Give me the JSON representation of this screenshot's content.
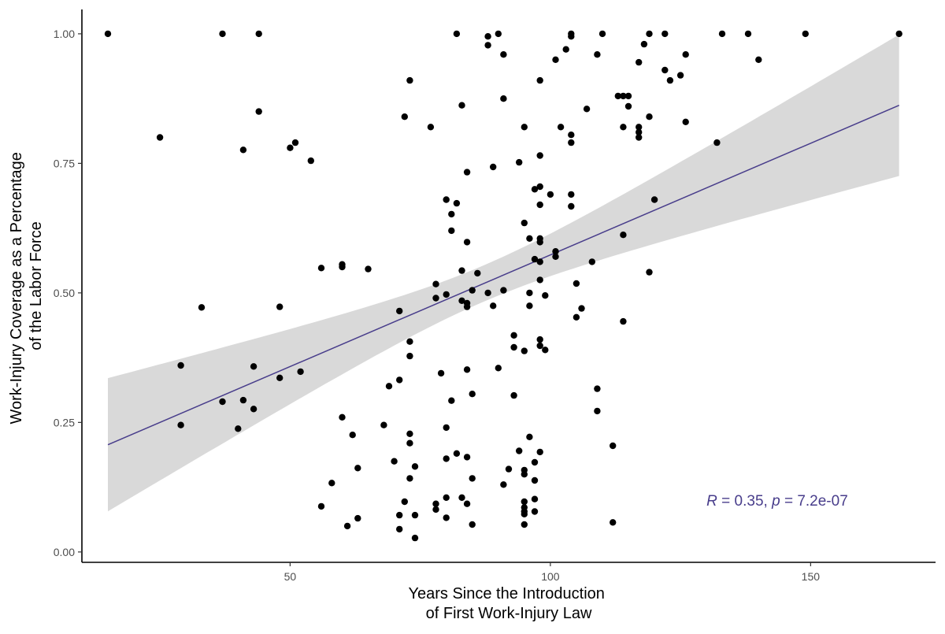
{
  "chart_data": {
    "type": "scatter",
    "title": "",
    "xlabel_lines": [
      "Years Since the Introduction",
      "of First Work-Injury Law"
    ],
    "ylabel_lines": [
      "Work-Injury Coverage as a Percentage",
      "of the Labor Force"
    ],
    "xlim": [
      10,
      174
    ],
    "ylim": [
      -0.02,
      1.047
    ],
    "x_ticks": [
      50,
      100,
      150
    ],
    "x_tick_labels": [
      "50",
      "100",
      "150"
    ],
    "y_ticks": [
      0,
      0.25,
      0.5,
      0.75,
      1
    ],
    "y_tick_labels": [
      "0.00",
      "0.25",
      "0.50",
      "0.75",
      "1.00"
    ],
    "grid": false,
    "point_color": "#000000",
    "fit_line_color": "#483d8b",
    "band_color": "#d9d9d9",
    "fit": {
      "x_range": [
        15,
        167
      ],
      "y_at_start": 0.207,
      "y_at_end": 0.862,
      "ci_at_start": [
        0.078,
        0.335
      ],
      "ci_at_end": [
        0.725,
        0.998
      ],
      "ci_narrowest_x": 87,
      "ci_narrowest_halfwidth": 0.035
    },
    "annotation": {
      "r_symbol": "R",
      "r_text": " = 0.35, ",
      "p_symbol": "p",
      "p_text": " = 7.2e-07",
      "color": "#483d8b",
      "x": 130,
      "y": 0.1
    },
    "points": [
      {
        "x": 15,
        "y": 1.0
      },
      {
        "x": 37,
        "y": 1.0
      },
      {
        "x": 44,
        "y": 1.0
      },
      {
        "x": 82,
        "y": 1.0
      },
      {
        "x": 88,
        "y": 0.995
      },
      {
        "x": 90,
        "y": 1.0
      },
      {
        "x": 104,
        "y": 1.0
      },
      {
        "x": 104,
        "y": 0.995
      },
      {
        "x": 110,
        "y": 1.0
      },
      {
        "x": 119,
        "y": 1.0
      },
      {
        "x": 122,
        "y": 1.0
      },
      {
        "x": 133,
        "y": 1.0
      },
      {
        "x": 138,
        "y": 1.0
      },
      {
        "x": 149,
        "y": 1.0
      },
      {
        "x": 167,
        "y": 1.0
      },
      {
        "x": 88,
        "y": 0.978
      },
      {
        "x": 91,
        "y": 0.96
      },
      {
        "x": 103,
        "y": 0.97
      },
      {
        "x": 101,
        "y": 0.95
      },
      {
        "x": 109,
        "y": 0.96
      },
      {
        "x": 118,
        "y": 0.98
      },
      {
        "x": 117,
        "y": 0.945
      },
      {
        "x": 126,
        "y": 0.96
      },
      {
        "x": 140,
        "y": 0.95
      },
      {
        "x": 122,
        "y": 0.93
      },
      {
        "x": 125,
        "y": 0.92
      },
      {
        "x": 123,
        "y": 0.91
      },
      {
        "x": 73,
        "y": 0.91
      },
      {
        "x": 98,
        "y": 0.91
      },
      {
        "x": 91,
        "y": 0.875
      },
      {
        "x": 83,
        "y": 0.862
      },
      {
        "x": 113,
        "y": 0.88
      },
      {
        "x": 114,
        "y": 0.88
      },
      {
        "x": 115,
        "y": 0.88
      },
      {
        "x": 115,
        "y": 0.86
      },
      {
        "x": 107,
        "y": 0.855
      },
      {
        "x": 44,
        "y": 0.85
      },
      {
        "x": 72,
        "y": 0.84
      },
      {
        "x": 119,
        "y": 0.84
      },
      {
        "x": 126,
        "y": 0.83
      },
      {
        "x": 77,
        "y": 0.82
      },
      {
        "x": 95,
        "y": 0.82
      },
      {
        "x": 102,
        "y": 0.82
      },
      {
        "x": 114,
        "y": 0.82
      },
      {
        "x": 117,
        "y": 0.82
      },
      {
        "x": 117,
        "y": 0.81
      },
      {
        "x": 104,
        "y": 0.805
      },
      {
        "x": 117,
        "y": 0.8
      },
      {
        "x": 25,
        "y": 0.8
      },
      {
        "x": 51,
        "y": 0.79
      },
      {
        "x": 104,
        "y": 0.79
      },
      {
        "x": 132,
        "y": 0.79
      },
      {
        "x": 50,
        "y": 0.78
      },
      {
        "x": 41,
        "y": 0.776
      },
      {
        "x": 98,
        "y": 0.765
      },
      {
        "x": 54,
        "y": 0.755
      },
      {
        "x": 94,
        "y": 0.752
      },
      {
        "x": 89,
        "y": 0.743
      },
      {
        "x": 84,
        "y": 0.733
      },
      {
        "x": 97,
        "y": 0.7
      },
      {
        "x": 98,
        "y": 0.705
      },
      {
        "x": 100,
        "y": 0.69
      },
      {
        "x": 104,
        "y": 0.69
      },
      {
        "x": 80,
        "y": 0.68
      },
      {
        "x": 82,
        "y": 0.673
      },
      {
        "x": 98,
        "y": 0.67
      },
      {
        "x": 104,
        "y": 0.667
      },
      {
        "x": 120,
        "y": 0.68
      },
      {
        "x": 81,
        "y": 0.652
      },
      {
        "x": 95,
        "y": 0.635
      },
      {
        "x": 81,
        "y": 0.62
      },
      {
        "x": 114,
        "y": 0.612
      },
      {
        "x": 96,
        "y": 0.605
      },
      {
        "x": 98,
        "y": 0.605
      },
      {
        "x": 84,
        "y": 0.598
      },
      {
        "x": 98,
        "y": 0.598
      },
      {
        "x": 101,
        "y": 0.58
      },
      {
        "x": 97,
        "y": 0.565
      },
      {
        "x": 98,
        "y": 0.56
      },
      {
        "x": 101,
        "y": 0.57
      },
      {
        "x": 108,
        "y": 0.56
      },
      {
        "x": 60,
        "y": 0.555
      },
      {
        "x": 60,
        "y": 0.55
      },
      {
        "x": 56,
        "y": 0.548
      },
      {
        "x": 65,
        "y": 0.546
      },
      {
        "x": 83,
        "y": 0.543
      },
      {
        "x": 86,
        "y": 0.538
      },
      {
        "x": 119,
        "y": 0.54
      },
      {
        "x": 98,
        "y": 0.525
      },
      {
        "x": 78,
        "y": 0.517
      },
      {
        "x": 105,
        "y": 0.518
      },
      {
        "x": 85,
        "y": 0.505
      },
      {
        "x": 91,
        "y": 0.505
      },
      {
        "x": 88,
        "y": 0.5
      },
      {
        "x": 96,
        "y": 0.5
      },
      {
        "x": 80,
        "y": 0.497
      },
      {
        "x": 99,
        "y": 0.495
      },
      {
        "x": 78,
        "y": 0.49
      },
      {
        "x": 83,
        "y": 0.485
      },
      {
        "x": 84,
        "y": 0.48
      },
      {
        "x": 84,
        "y": 0.473
      },
      {
        "x": 89,
        "y": 0.475
      },
      {
        "x": 96,
        "y": 0.475
      },
      {
        "x": 33,
        "y": 0.472
      },
      {
        "x": 48,
        "y": 0.473
      },
      {
        "x": 106,
        "y": 0.47
      },
      {
        "x": 71,
        "y": 0.465
      },
      {
        "x": 105,
        "y": 0.453
      },
      {
        "x": 114,
        "y": 0.445
      },
      {
        "x": 93,
        "y": 0.418
      },
      {
        "x": 98,
        "y": 0.41
      },
      {
        "x": 73,
        "y": 0.406
      },
      {
        "x": 98,
        "y": 0.398
      },
      {
        "x": 93,
        "y": 0.395
      },
      {
        "x": 99,
        "y": 0.39
      },
      {
        "x": 95,
        "y": 0.388
      },
      {
        "x": 73,
        "y": 0.378
      },
      {
        "x": 29,
        "y": 0.36
      },
      {
        "x": 43,
        "y": 0.358
      },
      {
        "x": 90,
        "y": 0.355
      },
      {
        "x": 84,
        "y": 0.352
      },
      {
        "x": 52,
        "y": 0.348
      },
      {
        "x": 79,
        "y": 0.345
      },
      {
        "x": 48,
        "y": 0.336
      },
      {
        "x": 71,
        "y": 0.332
      },
      {
        "x": 69,
        "y": 0.32
      },
      {
        "x": 109,
        "y": 0.315
      },
      {
        "x": 85,
        "y": 0.305
      },
      {
        "x": 93,
        "y": 0.302
      },
      {
        "x": 37,
        "y": 0.29
      },
      {
        "x": 41,
        "y": 0.293
      },
      {
        "x": 81,
        "y": 0.292
      },
      {
        "x": 43,
        "y": 0.276
      },
      {
        "x": 109,
        "y": 0.272
      },
      {
        "x": 60,
        "y": 0.26
      },
      {
        "x": 29,
        "y": 0.245
      },
      {
        "x": 68,
        "y": 0.245
      },
      {
        "x": 40,
        "y": 0.238
      },
      {
        "x": 80,
        "y": 0.24
      },
      {
        "x": 73,
        "y": 0.228
      },
      {
        "x": 62,
        "y": 0.226
      },
      {
        "x": 96,
        "y": 0.222
      },
      {
        "x": 73,
        "y": 0.21
      },
      {
        "x": 112,
        "y": 0.205
      },
      {
        "x": 94,
        "y": 0.195
      },
      {
        "x": 98,
        "y": 0.193
      },
      {
        "x": 82,
        "y": 0.19
      },
      {
        "x": 84,
        "y": 0.183
      },
      {
        "x": 80,
        "y": 0.18
      },
      {
        "x": 70,
        "y": 0.175
      },
      {
        "x": 97,
        "y": 0.173
      },
      {
        "x": 74,
        "y": 0.165
      },
      {
        "x": 63,
        "y": 0.162
      },
      {
        "x": 92,
        "y": 0.16
      },
      {
        "x": 95,
        "y": 0.158
      },
      {
        "x": 95,
        "y": 0.15
      },
      {
        "x": 73,
        "y": 0.142
      },
      {
        "x": 85,
        "y": 0.142
      },
      {
        "x": 97,
        "y": 0.138
      },
      {
        "x": 58,
        "y": 0.133
      },
      {
        "x": 91,
        "y": 0.13
      },
      {
        "x": 80,
        "y": 0.105
      },
      {
        "x": 83,
        "y": 0.105
      },
      {
        "x": 97,
        "y": 0.102
      },
      {
        "x": 72,
        "y": 0.097
      },
      {
        "x": 95,
        "y": 0.097
      },
      {
        "x": 84,
        "y": 0.093
      },
      {
        "x": 78,
        "y": 0.093
      },
      {
        "x": 56,
        "y": 0.088
      },
      {
        "x": 95,
        "y": 0.086
      },
      {
        "x": 78,
        "y": 0.082
      },
      {
        "x": 95,
        "y": 0.078
      },
      {
        "x": 97,
        "y": 0.078
      },
      {
        "x": 95,
        "y": 0.073
      },
      {
        "x": 71,
        "y": 0.071
      },
      {
        "x": 74,
        "y": 0.071
      },
      {
        "x": 80,
        "y": 0.066
      },
      {
        "x": 63,
        "y": 0.065
      },
      {
        "x": 112,
        "y": 0.057
      },
      {
        "x": 85,
        "y": 0.053
      },
      {
        "x": 95,
        "y": 0.053
      },
      {
        "x": 61,
        "y": 0.05
      },
      {
        "x": 71,
        "y": 0.044
      },
      {
        "x": 74,
        "y": 0.027
      }
    ]
  }
}
